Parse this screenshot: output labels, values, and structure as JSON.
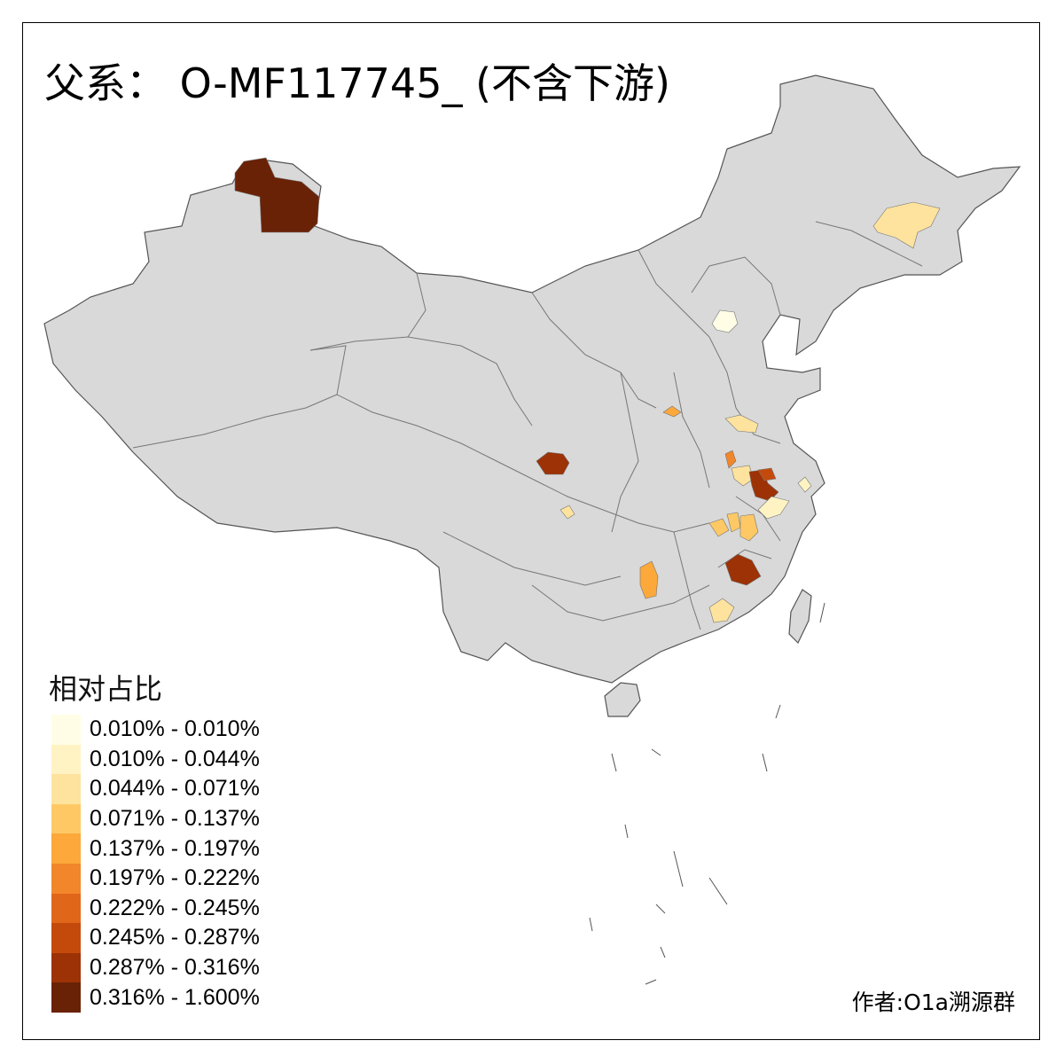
{
  "title": "父系： O-MF117745_ (不含下游)",
  "legend": {
    "title": "相对占比",
    "bins": [
      {
        "label": "0.010% - 0.010%",
        "color": "#fffde6"
      },
      {
        "label": "0.010% - 0.044%",
        "color": "#fff3c4"
      },
      {
        "label": "0.044% - 0.071%",
        "color": "#fee39e"
      },
      {
        "label": "0.071% - 0.137%",
        "color": "#fec965"
      },
      {
        "label": "0.137% - 0.197%",
        "color": "#fca83a"
      },
      {
        "label": "0.197% - 0.222%",
        "color": "#f2862a"
      },
      {
        "label": "0.222% - 0.245%",
        "color": "#e0661a"
      },
      {
        "label": "0.245% - 0.287%",
        "color": "#c44a0c"
      },
      {
        "label": "0.287% - 0.316%",
        "color": "#9c3206"
      },
      {
        "label": "0.316% - 1.600%",
        "color": "#6a2206"
      }
    ]
  },
  "author": "作者:O1a溯源群",
  "colors": {
    "base_land": "#d9d9d9",
    "border": "#555555",
    "frame": "#000000"
  }
}
